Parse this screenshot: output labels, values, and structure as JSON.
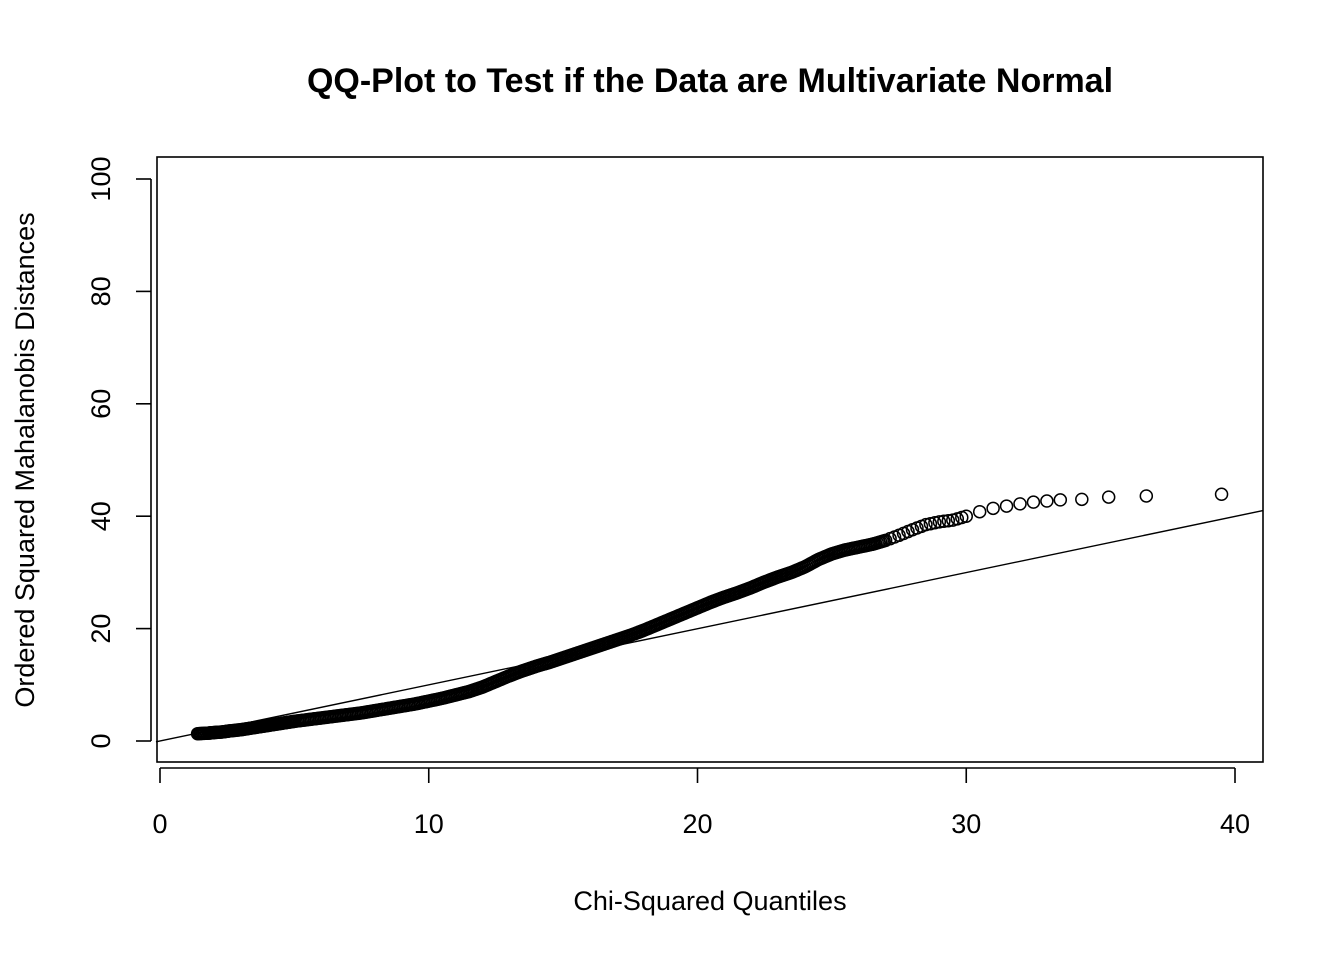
{
  "chart_data": {
    "type": "scatter",
    "title": "QQ-Plot to Test if the Data are Multivariate Normal",
    "xlabel": "Chi-Squared Quantiles",
    "ylabel": "Ordered Squared Mahalanobis Distances",
    "xlim": [
      0,
      41
    ],
    "ylim": [
      0,
      100
    ],
    "x_ticks": [
      "0",
      "10",
      "20",
      "30",
      "40"
    ],
    "y_ticks": [
      "0",
      "20",
      "40",
      "60",
      "80",
      "100"
    ],
    "grid": false,
    "legend": "none",
    "point_style": "open-circle",
    "colors": {
      "points": "#000000",
      "line": "#000000",
      "background": "#ffffff"
    },
    "reference_line": {
      "intercept": 0,
      "slope": 1
    },
    "points": [
      {
        "x": 1.4,
        "y": 1.3
      },
      {
        "x": 1.8,
        "y": 1.4
      },
      {
        "x": 2.0,
        "y": 1.5
      },
      {
        "x": 2.3,
        "y": 1.6
      },
      {
        "x": 2.6,
        "y": 1.8
      },
      {
        "x": 3.0,
        "y": 2.0
      },
      {
        "x": 3.4,
        "y": 2.3
      },
      {
        "x": 3.8,
        "y": 2.6
      },
      {
        "x": 4.2,
        "y": 2.9
      },
      {
        "x": 4.6,
        "y": 3.2
      },
      {
        "x": 5.0,
        "y": 3.5
      },
      {
        "x": 5.5,
        "y": 3.8
      },
      {
        "x": 6.0,
        "y": 4.1
      },
      {
        "x": 6.5,
        "y": 4.4
      },
      {
        "x": 7.0,
        "y": 4.7
      },
      {
        "x": 7.5,
        "y": 5.0
      },
      {
        "x": 8.0,
        "y": 5.4
      },
      {
        "x": 8.5,
        "y": 5.8
      },
      {
        "x": 9.0,
        "y": 6.2
      },
      {
        "x": 9.5,
        "y": 6.6
      },
      {
        "x": 10.0,
        "y": 7.1
      },
      {
        "x": 10.5,
        "y": 7.6
      },
      {
        "x": 11.0,
        "y": 8.2
      },
      {
        "x": 11.5,
        "y": 8.8
      },
      {
        "x": 12.0,
        "y": 9.6
      },
      {
        "x": 12.5,
        "y": 10.6
      },
      {
        "x": 13.0,
        "y": 11.6
      },
      {
        "x": 13.5,
        "y": 12.5
      },
      {
        "x": 14.0,
        "y": 13.3
      },
      {
        "x": 14.5,
        "y": 14.0
      },
      {
        "x": 15.0,
        "y": 14.8
      },
      {
        "x": 15.5,
        "y": 15.6
      },
      {
        "x": 16.0,
        "y": 16.4
      },
      {
        "x": 16.5,
        "y": 17.2
      },
      {
        "x": 17.0,
        "y": 18.0
      },
      {
        "x": 17.5,
        "y": 18.8
      },
      {
        "x": 18.0,
        "y": 19.7
      },
      {
        "x": 18.5,
        "y": 20.7
      },
      {
        "x": 19.0,
        "y": 21.7
      },
      {
        "x": 19.5,
        "y": 22.7
      },
      {
        "x": 20.0,
        "y": 23.7
      },
      {
        "x": 20.5,
        "y": 24.7
      },
      {
        "x": 21.0,
        "y": 25.6
      },
      {
        "x": 21.5,
        "y": 26.4
      },
      {
        "x": 22.0,
        "y": 27.3
      },
      {
        "x": 22.5,
        "y": 28.3
      },
      {
        "x": 23.0,
        "y": 29.2
      },
      {
        "x": 23.5,
        "y": 30.0
      },
      {
        "x": 24.0,
        "y": 31.0
      },
      {
        "x": 24.5,
        "y": 32.3
      },
      {
        "x": 25.0,
        "y": 33.3
      },
      {
        "x": 25.5,
        "y": 34.0
      },
      {
        "x": 26.0,
        "y": 34.5
      },
      {
        "x": 26.5,
        "y": 35.0
      },
      {
        "x": 27.0,
        "y": 35.7
      },
      {
        "x": 27.5,
        "y": 36.6
      },
      {
        "x": 28.0,
        "y": 37.6
      },
      {
        "x": 28.5,
        "y": 38.5
      },
      {
        "x": 29.0,
        "y": 39.0
      },
      {
        "x": 29.5,
        "y": 39.3
      },
      {
        "x": 30.0,
        "y": 40.0
      },
      {
        "x": 30.5,
        "y": 40.8
      },
      {
        "x": 31.0,
        "y": 41.4
      },
      {
        "x": 31.5,
        "y": 41.8
      },
      {
        "x": 32.0,
        "y": 42.2
      },
      {
        "x": 32.5,
        "y": 42.5
      },
      {
        "x": 33.0,
        "y": 42.7
      },
      {
        "x": 33.5,
        "y": 42.9
      },
      {
        "x": 34.3,
        "y": 43.0
      },
      {
        "x": 35.3,
        "y": 43.4
      },
      {
        "x": 36.7,
        "y": 43.6
      },
      {
        "x": 39.5,
        "y": 43.9
      }
    ]
  }
}
